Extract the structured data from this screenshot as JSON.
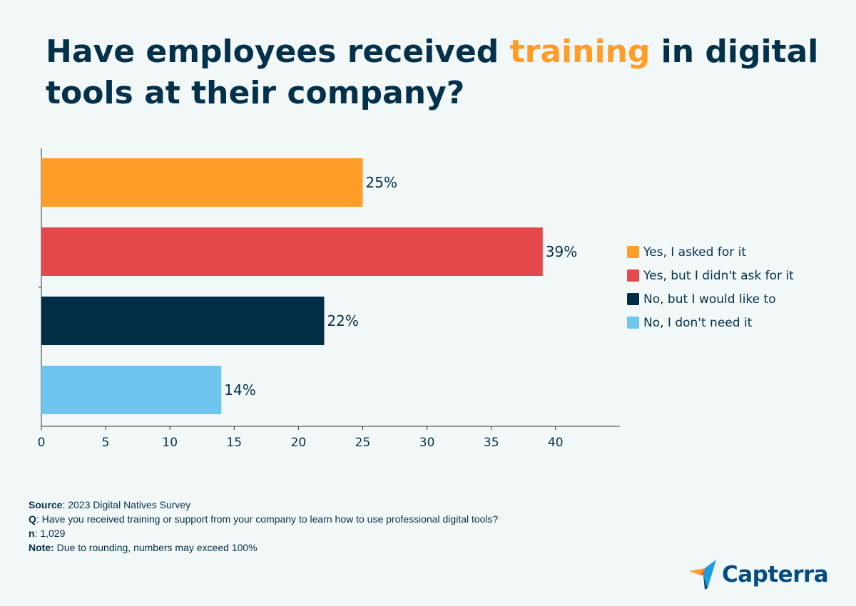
{
  "title": {
    "before": "Have employees received ",
    "highlight": "training",
    "after": " in digital tools at their company?"
  },
  "colors": {
    "title": "#04314a",
    "highlight": "#ff9d28",
    "background": "#f2f7f8"
  },
  "chart_data": {
    "type": "bar",
    "orientation": "horizontal",
    "categories": [
      "Yes, I asked for it",
      "Yes, but I didn't ask for it",
      "No, but I would like to",
      "No, I don't need it"
    ],
    "values": [
      25,
      39,
      22,
      14
    ],
    "value_labels": [
      "25%",
      "39%",
      "22%",
      "14%"
    ],
    "colors": [
      "#ff9d28",
      "#e5484a",
      "#022d46",
      "#6ec6ef"
    ],
    "xticks": [
      0,
      5,
      10,
      15,
      20,
      25,
      30,
      35,
      40
    ],
    "xlim": [
      0,
      45
    ],
    "grid": false,
    "legend_position": "right"
  },
  "footer": {
    "source_label": "Source",
    "source_text": ": 2023 Digital Natives Survey",
    "q_label": "Q",
    "q_text": ": Have you received training or support from your company to learn how to use professional digital tools?",
    "n_label": "n",
    "n_text": ": 1,029",
    "note_label": "Note:",
    "note_text": "  Due to rounding, numbers may exceed 100%"
  },
  "logo": {
    "text": "Capterra",
    "icon": "capterra-arrow-icon"
  }
}
